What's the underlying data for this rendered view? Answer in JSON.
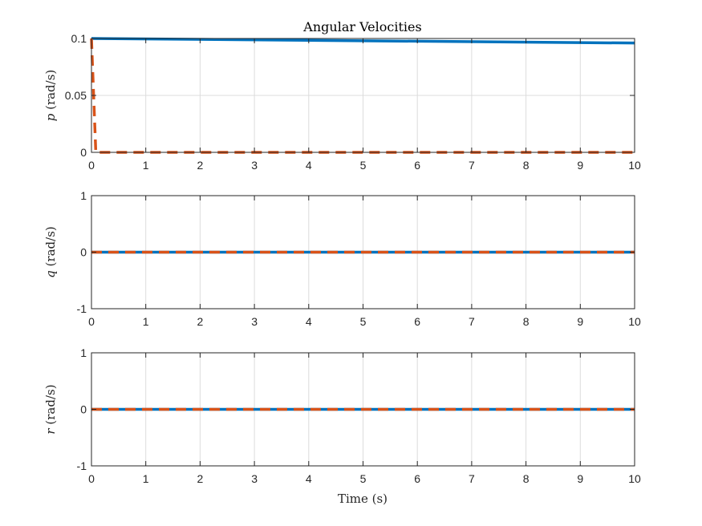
{
  "figure": {
    "title": "Angular Velocities",
    "xlabel": "Time (s)"
  },
  "colors": {
    "series_solid": "#0072BD",
    "series_dashed": "#D95319",
    "grid": "#dcdcdc",
    "axis": "#262626"
  },
  "chart_data": [
    {
      "type": "line",
      "title": "Angular Velocities",
      "ylabel_symbol": "p",
      "ylabel_unit": "(rad/s)",
      "xlabel": "",
      "xlim": [
        0,
        10
      ],
      "ylim": [
        0,
        0.1
      ],
      "xticks": [
        "0",
        "1",
        "2",
        "3",
        "4",
        "5",
        "6",
        "7",
        "8",
        "9",
        "10"
      ],
      "yticks": [
        "0",
        "0.05",
        "0.1"
      ],
      "ytick_values": [
        0,
        0.05,
        0.1
      ],
      "grid": true,
      "series": [
        {
          "style": "solid",
          "color": "#0072BD",
          "x": [
            0,
            10
          ],
          "y": [
            0.1,
            0.096
          ]
        },
        {
          "style": "dashed",
          "color": "#D95319",
          "x": [
            0,
            0.08,
            10
          ],
          "y": [
            0.1,
            0,
            0
          ]
        }
      ]
    },
    {
      "type": "line",
      "title": "",
      "ylabel_symbol": "q",
      "ylabel_unit": "(rad/s)",
      "xlabel": "",
      "xlim": [
        0,
        10
      ],
      "ylim": [
        -1,
        1
      ],
      "xticks": [
        "0",
        "1",
        "2",
        "3",
        "4",
        "5",
        "6",
        "7",
        "8",
        "9",
        "10"
      ],
      "yticks": [
        "-1",
        "0",
        "1"
      ],
      "ytick_values": [
        -1,
        0,
        1
      ],
      "grid": true,
      "series": [
        {
          "style": "solid",
          "color": "#0072BD",
          "x": [
            0,
            10
          ],
          "y": [
            0,
            0
          ]
        },
        {
          "style": "dashed",
          "color": "#D95319",
          "x": [
            0,
            10
          ],
          "y": [
            0,
            0
          ]
        }
      ]
    },
    {
      "type": "line",
      "title": "",
      "ylabel_symbol": "r",
      "ylabel_unit": "(rad/s)",
      "xlabel": "Time (s)",
      "xlim": [
        0,
        10
      ],
      "ylim": [
        -1,
        1
      ],
      "xticks": [
        "0",
        "1",
        "2",
        "3",
        "4",
        "5",
        "6",
        "7",
        "8",
        "9",
        "10"
      ],
      "yticks": [
        "-1",
        "0",
        "1"
      ],
      "ytick_values": [
        -1,
        0,
        1
      ],
      "grid": true,
      "series": [
        {
          "style": "solid",
          "color": "#0072BD",
          "x": [
            0,
            10
          ],
          "y": [
            0,
            0
          ]
        },
        {
          "style": "dashed",
          "color": "#D95319",
          "x": [
            0,
            10
          ],
          "y": [
            0,
            0
          ]
        }
      ]
    }
  ]
}
